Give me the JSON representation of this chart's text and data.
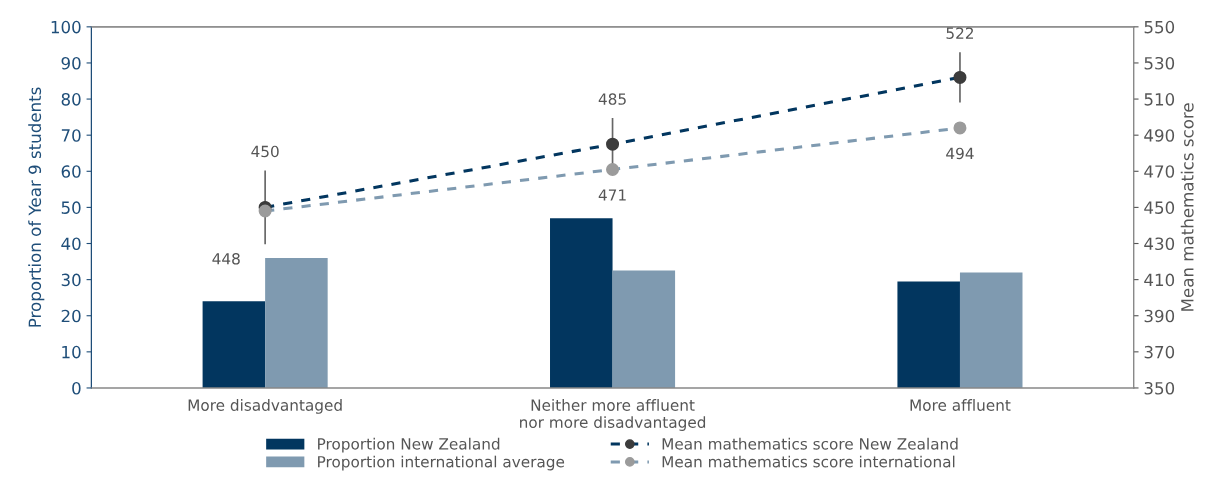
{
  "chart_data": {
    "type": "bar",
    "ylabel": "Proportion of Year 9 students",
    "y2label": "Mean mathematics score",
    "categories": [
      "More disadvantaged",
      "Neither more affluent\nnor more disadvantaged",
      "More affluent"
    ],
    "series": [
      {
        "name": "Proportion New Zealand",
        "color": "#02365f",
        "values": [
          24,
          47,
          29.5
        ]
      },
      {
        "name": "Proportion international average",
        "color": "#7f9ab0",
        "values": [
          36,
          32.5,
          32
        ]
      },
      {
        "name": "Mean mathematics score New Zealand",
        "type": "line",
        "axis": "y2",
        "color": "#02365f",
        "colors": [
          "#3c3c3c",
          "#3c3c3c",
          "#3c3c3c"
        ],
        "values": [
          450,
          485,
          522
        ],
        "errors": [
          20,
          14,
          13.5
        ],
        "value_labels": [
          "450",
          "485",
          "522"
        ]
      },
      {
        "name": "Mean mathematics score international",
        "type": "line",
        "axis": "y2",
        "color": "#7f9ab0",
        "colors": [
          "#9b9b9b",
          "#9b9b9b",
          "#9b9b9b"
        ],
        "values": [
          448,
          471,
          494
        ],
        "value_labels": [
          "448",
          "471",
          "494"
        ]
      }
    ],
    "ylim": [
      0,
      100
    ],
    "yticks": [
      0,
      10,
      20,
      30,
      40,
      50,
      60,
      70,
      80,
      90,
      100
    ],
    "y2lim": [
      350,
      550
    ],
    "y2ticks": [
      350,
      370,
      390,
      410,
      430,
      450,
      470,
      490,
      510,
      530,
      550
    ],
    "marker": "circle",
    "line_style": "dashed",
    "grid": false,
    "legend": "bottom"
  }
}
